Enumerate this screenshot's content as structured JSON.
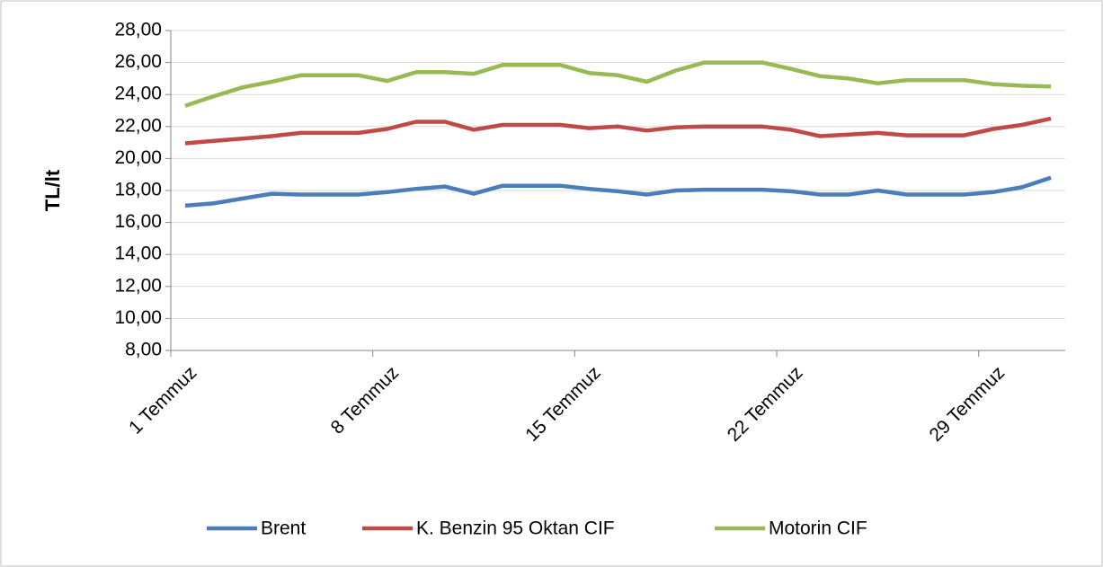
{
  "chart_data": {
    "type": "line",
    "ylabel": "TL/lt",
    "categories": [
      "1 Temmuz",
      null,
      null,
      null,
      null,
      null,
      null,
      "8 Temmuz",
      null,
      null,
      null,
      null,
      null,
      null,
      "15 Temmuz",
      null,
      null,
      null,
      null,
      null,
      null,
      "22 Temmuz",
      null,
      null,
      null,
      null,
      null,
      null,
      "29 Temmuz",
      null,
      null
    ],
    "ylim": [
      8,
      28
    ],
    "yticks": [
      {
        "value": 8,
        "label": "8,00"
      },
      {
        "value": 10,
        "label": "10,00"
      },
      {
        "value": 12,
        "label": "12,00"
      },
      {
        "value": 14,
        "label": "14,00"
      },
      {
        "value": 16,
        "label": "16,00"
      },
      {
        "value": 18,
        "label": "18,00"
      },
      {
        "value": 20,
        "label": "20,00"
      },
      {
        "value": 22,
        "label": "22,00"
      },
      {
        "value": 24,
        "label": "24,00"
      },
      {
        "value": 26,
        "label": "26,00"
      },
      {
        "value": 28,
        "label": "28,00"
      }
    ],
    "grid": true,
    "legend": "bottom",
    "series": [
      {
        "name": "Brent",
        "color": "#4a7ebb",
        "values": [
          17.05,
          17.2,
          17.5,
          17.8,
          17.75,
          17.75,
          17.75,
          17.9,
          18.1,
          18.25,
          17.8,
          18.3,
          18.3,
          18.3,
          18.1,
          17.95,
          17.75,
          18.0,
          18.05,
          18.05,
          18.05,
          17.95,
          17.75,
          17.75,
          18.0,
          17.75,
          17.75,
          17.75,
          17.9,
          18.2,
          18.8
        ]
      },
      {
        "name": "K. Benzin 95 Oktan CIF",
        "color": "#be4b48",
        "values": [
          20.95,
          21.1,
          21.25,
          21.4,
          21.6,
          21.6,
          21.6,
          21.85,
          22.3,
          22.3,
          21.8,
          22.1,
          22.1,
          22.1,
          21.9,
          22.0,
          21.75,
          21.95,
          22.0,
          22.0,
          22.0,
          21.8,
          21.4,
          21.5,
          21.6,
          21.45,
          21.45,
          21.45,
          21.85,
          22.1,
          22.5
        ]
      },
      {
        "name": "Motorin CIF",
        "color": "#98b954",
        "values": [
          23.3,
          23.9,
          24.45,
          24.8,
          25.2,
          25.2,
          25.2,
          24.85,
          25.4,
          25.4,
          25.3,
          25.85,
          25.85,
          25.85,
          25.35,
          25.2,
          24.8,
          25.5,
          26.0,
          26.0,
          26.0,
          25.6,
          25.15,
          25.0,
          24.7,
          24.9,
          24.9,
          24.9,
          24.65,
          24.55,
          24.5
        ]
      }
    ]
  }
}
